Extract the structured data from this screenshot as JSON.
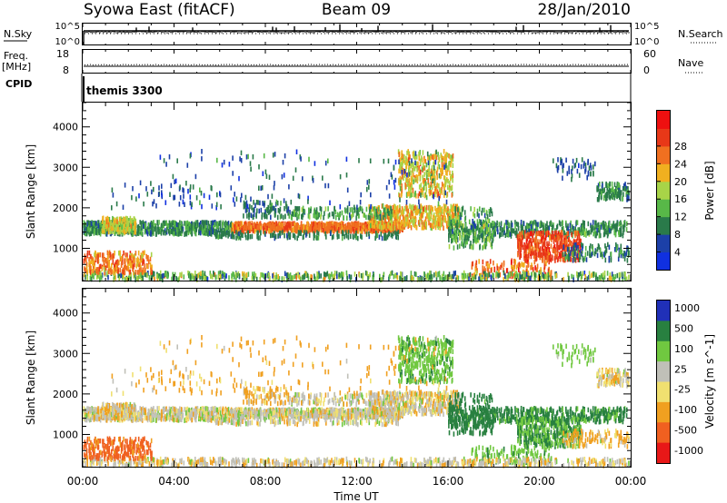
{
  "header": {
    "station": "Syowa East (fitACF)",
    "beam": "Beam 09",
    "date": "28/Jan/2010"
  },
  "strip": {
    "nsky_label": "N.Sky",
    "nsky_top": "10^5",
    "nsky_bottom": "10^0",
    "nsearch_label": "N.Search",
    "nsearch_top": "10^5",
    "nsearch_bottom": "10^0",
    "freq_label": "Freq.",
    "freq_unit": "[MHz]",
    "freq_top": "18",
    "freq_bottom": "8",
    "nave_label": "Nave",
    "nave_top": "60",
    "nave_bottom": "0",
    "cpid_label": "CPID",
    "cpid_value": "themis 3300"
  },
  "colors": {
    "power": [
      "#1030e0",
      "#1c40a8",
      "#2a7a4a",
      "#58b848",
      "#a8d448",
      "#f0b020",
      "#f07020",
      "#e83818",
      "#ee1010"
    ],
    "velocity": [
      "#2030b8",
      "#288040",
      "#70c840",
      "#c0c0b8",
      "#f0e070",
      "#f0a020",
      "#f06020",
      "#e81818"
    ]
  },
  "chart_data": [
    {
      "type": "heatmap",
      "title": "",
      "ylabel": "Slant Range [km]",
      "xlabel": "",
      "xlim": [
        "00:00",
        "00:00"
      ],
      "ylim": [
        180,
        4600
      ],
      "x_ticks": [
        "00:00",
        "04:00",
        "08:00",
        "12:00",
        "16:00",
        "20:00",
        "00:00"
      ],
      "y_ticks": [
        1000,
        2000,
        3000,
        4000
      ],
      "colorbar": {
        "label": "Power [dB]",
        "ticks": [
          "4",
          "8",
          "12",
          "16",
          "20",
          "24",
          "28"
        ],
        "range": [
          0,
          30
        ]
      },
      "features": [
        {
          "time_start": "00:00",
          "time_end": "11:30",
          "range_km": 1500,
          "value": 12
        },
        {
          "time_start": "06:30",
          "time_end": "14:00",
          "range_km": 1500,
          "value": 24
        },
        {
          "time_start": "13:30",
          "time_end": "16:30",
          "range_km": 1900,
          "value": 20
        },
        {
          "time_start": "14:30",
          "time_end": "16:00",
          "range_km": 3100,
          "value": 20
        },
        {
          "time_start": "19:30",
          "time_end": "22:00",
          "range_km": 1000,
          "value": 26
        },
        {
          "time_start": "00:00",
          "time_end": "24:00",
          "range_km": 300,
          "value": 16
        }
      ]
    },
    {
      "type": "heatmap",
      "title": "",
      "ylabel": "Slant Range [km]",
      "xlabel": "Time UT",
      "xlim": [
        "00:00",
        "00:00"
      ],
      "ylim": [
        180,
        4600
      ],
      "x_ticks": [
        "00:00",
        "04:00",
        "08:00",
        "12:00",
        "16:00",
        "20:00",
        "00:00"
      ],
      "y_ticks": [
        1000,
        2000,
        3000,
        4000
      ],
      "colorbar": {
        "label": "Velocity [m s^-1]",
        "ticks": [
          "1000",
          "500",
          "100",
          "25",
          "-25",
          "-100",
          "-500",
          "-1000"
        ]
      },
      "features": [
        {
          "time_start": "00:00",
          "time_end": "11:30",
          "range_km": 1500,
          "value": 0
        },
        {
          "time_start": "06:30",
          "time_end": "16:00",
          "range_km": 1500,
          "value": 0
        },
        {
          "time_start": "16:00",
          "time_end": "22:00",
          "range_km": 1000,
          "value": 300
        },
        {
          "time_start": "00:00",
          "time_end": "03:00",
          "range_km": 600,
          "value": -300
        },
        {
          "time_start": "14:30",
          "time_end": "16:00",
          "range_km": 3000,
          "value": 300
        }
      ]
    }
  ]
}
